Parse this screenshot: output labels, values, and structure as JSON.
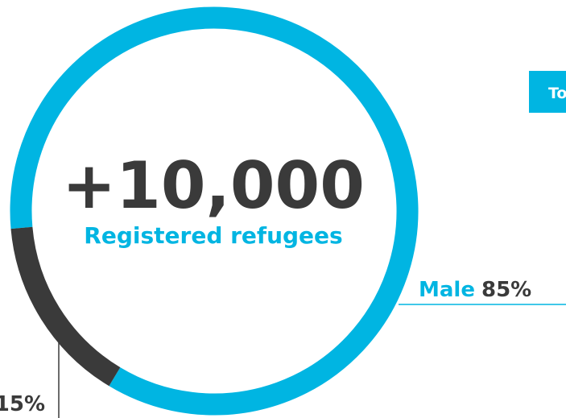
{
  "chart_data": {
    "type": "donut",
    "title": "+10,000",
    "subtitle": "Registered refugees",
    "categories": [
      "Male",
      null
    ],
    "values": [
      85,
      15
    ],
    "value_labels": [
      "85%",
      "15%"
    ],
    "colors": [
      "#00b5e2",
      "#3a3a3a"
    ],
    "button": "To"
  }
}
